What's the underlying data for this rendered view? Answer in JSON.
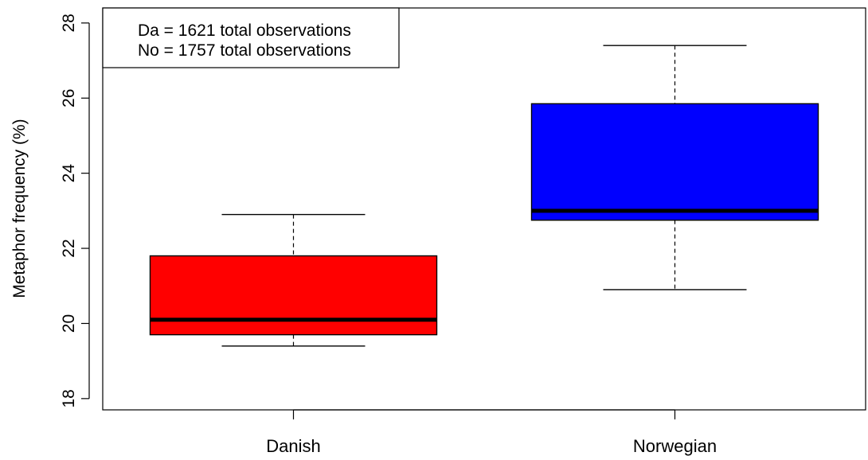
{
  "chart_data": {
    "type": "boxplot",
    "title": "",
    "xlabel": "",
    "ylabel": "Metaphor frequency (%)",
    "ylim": [
      17.7,
      28.4
    ],
    "yticks": [
      18,
      20,
      22,
      24,
      26,
      28
    ],
    "grid": false,
    "legend_position": "top-left",
    "legend": [
      "Da = 1621 total observations",
      "No = 1757 total observations"
    ],
    "categories": [
      "Danish",
      "Norwegian"
    ],
    "boxes": [
      {
        "category": "Danish",
        "color": "#ff0000",
        "whisker_low": 19.4,
        "q1": 19.7,
        "median": 20.1,
        "q3": 21.8,
        "whisker_high": 22.9
      },
      {
        "category": "Norwegian",
        "color": "#0000ff",
        "whisker_low": 20.9,
        "q1": 22.75,
        "median": 23.0,
        "q3": 25.85,
        "whisker_high": 27.4
      }
    ]
  }
}
